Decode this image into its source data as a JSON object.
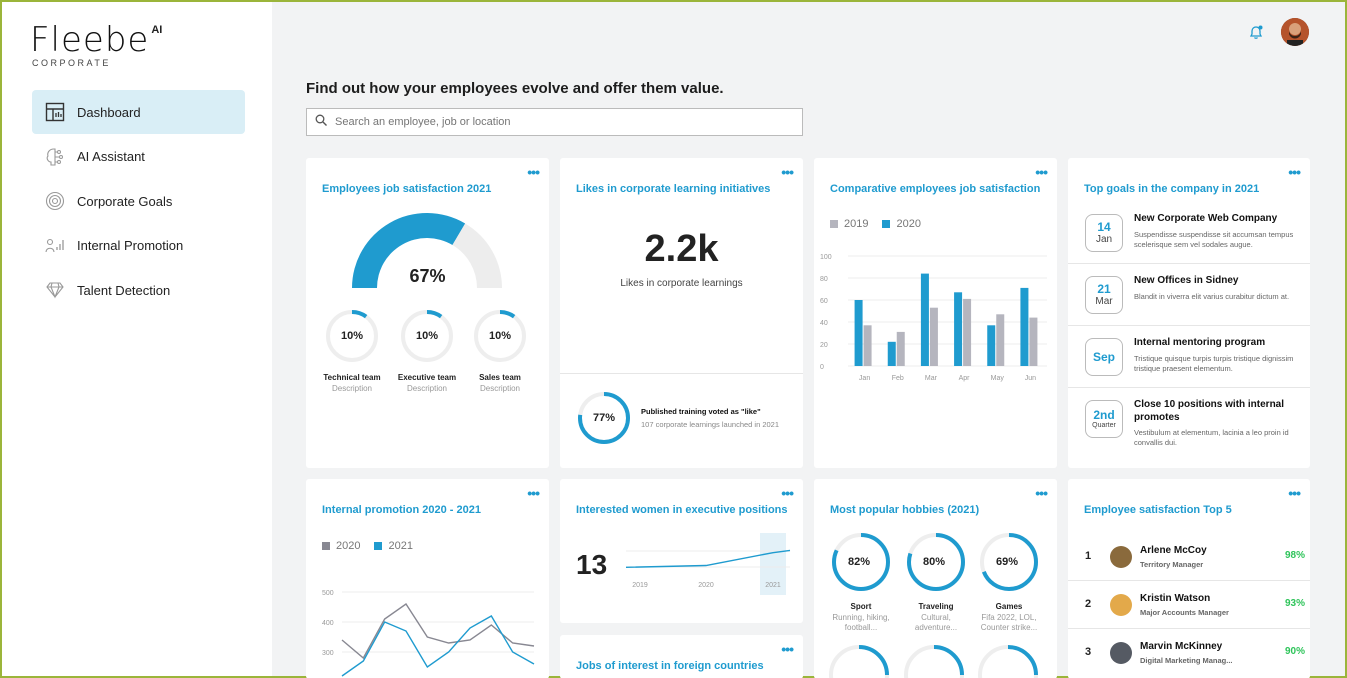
{
  "brand": {
    "name": "Fleebe",
    "ai": "AI",
    "sub": "CORPORATE"
  },
  "nav": [
    {
      "label": "Dashboard",
      "icon": "dashboard-icon",
      "active": true
    },
    {
      "label": "AI Assistant",
      "icon": "brain-icon",
      "active": false
    },
    {
      "label": "Corporate Goals",
      "icon": "target-icon",
      "active": false
    },
    {
      "label": "Internal Promotion",
      "icon": "promotion-icon",
      "active": false
    },
    {
      "label": "Talent Detection",
      "icon": "diamond-icon",
      "active": false
    }
  ],
  "header": {
    "headline": "Find out how your employees evolve and offer them value.",
    "search_placeholder": "Search an employee, job or location"
  },
  "colors": {
    "accent": "#1f9bcf",
    "grey": "#b5b5be",
    "green": "#2ec45a"
  },
  "satisfaction": {
    "title": "Employees job satisfaction 2021",
    "main": "67%",
    "main_value": 67,
    "teams": [
      {
        "pct": "10%",
        "value": 10,
        "name": "Technical team",
        "desc": "Description"
      },
      {
        "pct": "10%",
        "value": 10,
        "name": "Executive team",
        "desc": "Description"
      },
      {
        "pct": "10%",
        "value": 10,
        "name": "Sales team",
        "desc": "Description"
      }
    ]
  },
  "likes": {
    "title": "Likes in corporate learning initiatives",
    "big": "2.2k",
    "sub": "Likes in corporate learnings",
    "ring_pct": "77%",
    "ring_value": 77,
    "voted_title": "Published training voted as \"like\"",
    "voted_desc": "107 corporate learnings launched in 2021"
  },
  "comparative": {
    "title": "Comparative employees job satisfaction",
    "chart_data": {
      "type": "bar",
      "categories": [
        "Jan",
        "Feb",
        "Mar",
        "Apr",
        "May",
        "Jun"
      ],
      "series": [
        {
          "name": "2019",
          "values": [
            37,
            31,
            53,
            61,
            47,
            44
          ]
        },
        {
          "name": "2020",
          "values": [
            60,
            22,
            84,
            67,
            37,
            71
          ]
        }
      ],
      "ylim": [
        0,
        100
      ],
      "yticks": [
        "0",
        "20",
        "40",
        "60",
        "80",
        "100"
      ]
    }
  },
  "top_goals": {
    "title": "Top goals in the company in 2021",
    "items": [
      {
        "big": "14",
        "small": "Jan",
        "title": "New Corporate Web Company",
        "desc": "Suspendisse suspendisse sit accumsan tempus scelerisque sem vel sodales augue."
      },
      {
        "big": "21",
        "small": "Mar",
        "title": "New Offices in Sidney",
        "desc": "Blandit in viverra elit varius curabitur dictum at."
      },
      {
        "big": "Sep",
        "small": "",
        "title": "Internal mentoring program",
        "desc": "Tristique quisque turpis turpis tristique dignissim tristique praesent elementum."
      },
      {
        "big": "2nd",
        "small": "Quarter",
        "title": "Close 10 positions with internal promotes",
        "desc": "Vestibulum at elementum, lacinia a leo proin id convallis dui."
      }
    ]
  },
  "promotion": {
    "title": "Internal promotion 2020 - 2021",
    "chart_data": {
      "type": "line",
      "series": [
        {
          "name": "2020",
          "values": [
            340,
            280,
            410,
            460,
            350,
            330,
            340,
            390,
            330,
            320
          ]
        },
        {
          "name": "2021",
          "values": [
            220,
            270,
            400,
            370,
            250,
            300,
            380,
            420,
            300,
            260
          ]
        }
      ],
      "ylim": [
        250,
        550
      ],
      "yticks": [
        "300",
        "400",
        "500"
      ]
    }
  },
  "women": {
    "title": "Interested women in executive positions",
    "big": "13",
    "chart_data": {
      "type": "line",
      "categories": [
        "2019",
        "2020",
        "2021"
      ],
      "series": [
        {
          "values": [
            2,
            3,
            10
          ]
        }
      ]
    }
  },
  "jobs": {
    "title": "Jobs of interest in foreign countries"
  },
  "hobbies": {
    "title": "Most popular hobbies (2021)",
    "items": [
      {
        "pct": "82%",
        "value": 82,
        "name": "Sport",
        "desc1": "Running, hiking,",
        "desc2": "football..."
      },
      {
        "pct": "80%",
        "value": 80,
        "name": "Traveling",
        "desc1": "Cultural,",
        "desc2": "adventure..."
      },
      {
        "pct": "69%",
        "value": 69,
        "name": "Games",
        "desc1": "Fifa 2022, LOL,",
        "desc2": "Counter strike..."
      }
    ]
  },
  "top5": {
    "title": "Employee satisfaction Top 5",
    "items": [
      {
        "rank": "1",
        "name": "Arlene McCoy",
        "role": "Territory Manager",
        "score": "98%",
        "color": "#8a6a3c"
      },
      {
        "rank": "2",
        "name": "Kristin Watson",
        "role": "Major Accounts Manager",
        "score": "93%",
        "color": "#e3a94a"
      },
      {
        "rank": "3",
        "name": "Marvin McKinney",
        "role": "Digital Marketing Manag...",
        "score": "90%",
        "color": "#555a63"
      }
    ]
  }
}
